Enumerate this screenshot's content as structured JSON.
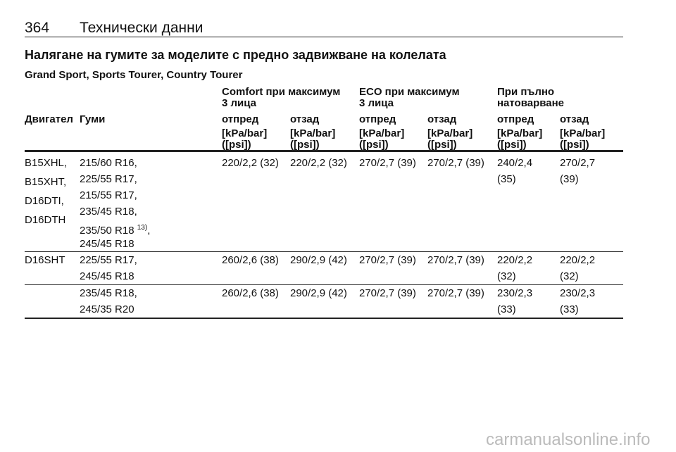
{
  "header": {
    "page_number": "364",
    "title": "Технически данни"
  },
  "section_title": "Налягане на гумите за моделите с предно задвижване на колелата",
  "models": "Grand Sport, Sports Tourer, Country Tourer",
  "table": {
    "groups": [
      [
        "Comfort при максимум",
        "3 лица"
      ],
      [
        "ECO при максимум",
        "3 лица"
      ],
      [
        "При пълно",
        "натоварване"
      ]
    ],
    "columns": [
      "Двигател",
      "Гуми",
      "отпред",
      "отзад",
      "отпред",
      "отзад",
      "отпред",
      "отзад"
    ],
    "units": [
      "[kPa/bar]",
      "([psi])"
    ],
    "rows": [
      {
        "engines": [
          "B15XHL,",
          "B15XHT,",
          "D16DTI,",
          "D16DTH"
        ],
        "tires": [
          {
            "text": "215/60 R16,"
          },
          {
            "text": "225/55 R17,"
          },
          {
            "text": "215/55 R17,"
          },
          {
            "text": "235/45 R18,"
          },
          {
            "text": "235/50 R18",
            "note": "13)",
            "after": ","
          },
          {
            "text": "245/45 R18"
          }
        ],
        "values": [
          "220/2,2 (32)",
          "220/2,2 (32)",
          "270/2,7 (39)",
          "270/2,7 (39)",
          "240/2,4 (35)",
          "270/2,7 (39)"
        ]
      },
      {
        "engines": [
          "D16SHT"
        ],
        "tires": [
          {
            "text": "225/55 R17,"
          },
          {
            "text": "245/45 R18"
          }
        ],
        "values": [
          "260/2,6 (38)",
          "290/2,9 (42)",
          "270/2,7 (39)",
          "270/2,7 (39)",
          "220/2,2 (32)",
          "220/2,2 (32)"
        ]
      },
      {
        "engines": [],
        "tires": [
          {
            "text": "235/45 R18,"
          },
          {
            "text": "245/35 R20"
          }
        ],
        "values": [
          "260/2,6 (38)",
          "290/2,9 (42)",
          "270/2,7 (39)",
          "270/2,7 (39)",
          "230/2,3 (33)",
          "230/2,3 (33)"
        ]
      }
    ]
  },
  "watermark": "carmanualsonline.info"
}
